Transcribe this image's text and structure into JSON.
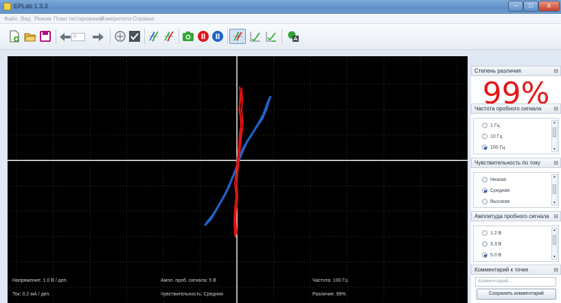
{
  "window": {
    "title": "EPLab 1.3.3",
    "controls": {
      "minimize": "–",
      "maximize": "□",
      "close": "x"
    }
  },
  "menu": [
    "Файл",
    "Вид",
    "Режим",
    "План тестирования",
    "Измерители",
    "Справка"
  ],
  "toolbar": {
    "icons": [
      "new-file-icon",
      "open-folder-icon",
      "save-icon",
      "arrow-left-icon",
      "arrow-right-icon",
      "crosshair-icon",
      "check-icon",
      "curve-pair-icon",
      "curve-pair-red-icon",
      "camera-icon",
      "record-icon",
      "pause-icon",
      "curve-mode-icon",
      "curve-check-icon",
      "curve-check-list-icon",
      "report-icon"
    ],
    "point_number": "0"
  },
  "plot": {
    "status": {
      "voltage": "Напряжение: 1.0 В / дел.",
      "current": "Ток: 0.2 мА / дел.",
      "amplitude": "Ампл. проб. сигнала: 5 В",
      "sensitivity": "Чувствительность: Средняя",
      "frequency": "Частота: 100 Гц",
      "difference": "Различие: 99%"
    },
    "colors": {
      "background": "#000000",
      "grid": "#3a3a3a",
      "axes": "#ffffff",
      "reference_curve": "#1f63c9",
      "test_curve": "#e01515"
    }
  },
  "panels": {
    "difference": {
      "title": "Степень различия",
      "value": "99%",
      "color": "#e41818"
    },
    "frequency": {
      "title": "Частота пробного сигнала",
      "options": [
        "1 Гц",
        "10 Гц",
        "100 Гц"
      ],
      "selected": "100 Гц"
    },
    "sensitivity": {
      "title": "Чувствительность по току",
      "options": [
        "Низкая",
        "Средняя",
        "Высокая"
      ],
      "selected": "Средняя"
    },
    "amplitude": {
      "title": "Амплитуда пробного сигнала",
      "options": [
        "1.2 В",
        "3.3 В",
        "5.0 В"
      ],
      "selected": "5.0 В"
    },
    "comment": {
      "title": "Комментарий к точке",
      "placeholder": "Комментарий...",
      "save_label": "Сохранить комментарий"
    }
  },
  "pin_glyph": "⊟"
}
